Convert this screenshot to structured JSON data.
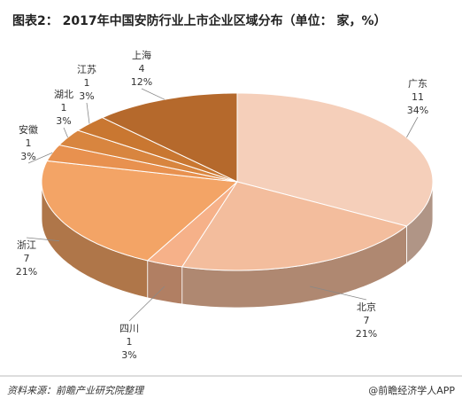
{
  "chart_data": {
    "type": "pie3d",
    "title": "图表2： 2017年中国安防行业上市企业区域分布（单位： 家，%）",
    "categories": [
      "广东",
      "北京",
      "四川",
      "浙江",
      "安徽",
      "湖北",
      "江苏",
      "上海"
    ],
    "values": [
      11,
      7,
      1,
      7,
      1,
      1,
      1,
      4
    ],
    "percentages": [
      34,
      21,
      3,
      21,
      3,
      3,
      3,
      12
    ],
    "percentage_labels": [
      "34%",
      "21%",
      "3%",
      "21%",
      "3%",
      "3%",
      "3%",
      "12%"
    ],
    "colors": [
      "#f5cfba",
      "#f3bd9d",
      "#f6b189",
      "#f3a466",
      "#e8914f",
      "#d8853f",
      "#c97731",
      "#b5692c"
    ],
    "source": "资料来源：前瞻产业研究院整理",
    "credit": "@前瞻经济学人APP"
  }
}
